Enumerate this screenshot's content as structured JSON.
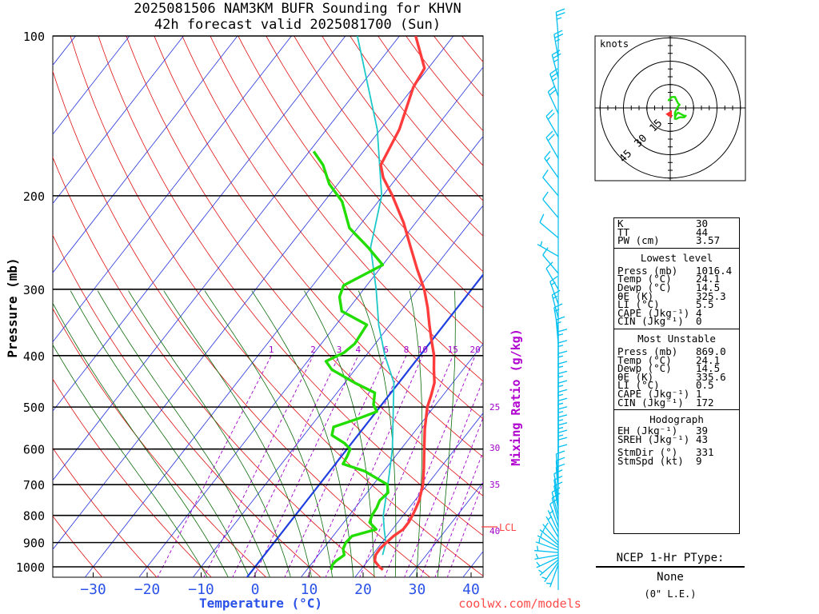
{
  "header": {
    "title_line1": "2025081506 NAM3KM BUFR Sounding for KHVN",
    "title_line2": "42h forecast valid 2025081700 (Sun)"
  },
  "axes": {
    "ylabel": "Pressure (mb)",
    "xlabel": "Temperature (°C)",
    "mixing_ratio_label": "Mixing Ratio (g/kg)",
    "lcl_label": "LCL",
    "credit": "coolwx.com/models"
  },
  "chart_data": {
    "type": "line",
    "title": "2025081506 NAM3KM BUFR Sounding for KHVN",
    "subtitle": "42h forecast valid 2025081700 (Sun)",
    "xlabel": "Temperature (°C)",
    "ylabel": "Pressure (mb)",
    "y_scale": "log",
    "pressure_levels": [
      100,
      200,
      300,
      400,
      500,
      600,
      700,
      800,
      900,
      1000
    ],
    "pressure_tick_labels": [
      "100",
      "200",
      "300",
      "400",
      "500",
      "600",
      "700",
      "800",
      "900",
      "1000"
    ],
    "temperature_ticks": [
      -30,
      -20,
      -10,
      0,
      10,
      20,
      30,
      40
    ],
    "temperature_tick_labels": [
      "−30",
      "−20",
      "−10",
      "0",
      "10",
      "20",
      "30",
      "40"
    ],
    "xlim_at_1000mb": [
      -40.7,
      43
    ],
    "mixing_ratio_lines": [
      1,
      2,
      3,
      4,
      6,
      8,
      10,
      15,
      20,
      25,
      30,
      35,
      40
    ],
    "mixing_ratio_labels_top": [
      "1",
      "2",
      "3",
      "4",
      "6",
      "8",
      "10",
      "15",
      "20"
    ],
    "mixing_ratio_labels_right": [
      "25",
      "30",
      "35",
      "40"
    ],
    "colors": {
      "temperature": "#ff3b3b",
      "dewpoint": "#22dd00",
      "parcel": "#1ec8c8",
      "freezing_line": "#1f3fe0",
      "isotherm": "#2433dd",
      "dry_adiabat": "#e01010",
      "moist_adiabat": "#0a6a0a",
      "mixing_ratio": "#a000c8",
      "wind_barb": "#00bff0",
      "hodograph": "#22dd00",
      "lcl": "#ff4444"
    },
    "series": [
      {
        "name": "Temperature",
        "points": [
          [
            1013,
            24.1
          ],
          [
            1000,
            23.0
          ],
          [
            975,
            21.3
          ],
          [
            950,
            20.6
          ],
          [
            925,
            20.5
          ],
          [
            900,
            20.8
          ],
          [
            875,
            21.2
          ],
          [
            850,
            22.0
          ],
          [
            825,
            22.0
          ],
          [
            800,
            21.7
          ],
          [
            775,
            21.3
          ],
          [
            750,
            20.8
          ],
          [
            700,
            19.2
          ],
          [
            650,
            16.9
          ],
          [
            600,
            14.3
          ],
          [
            550,
            11.5
          ],
          [
            500,
            8.8
          ],
          [
            475,
            7.8
          ],
          [
            450,
            6.6
          ],
          [
            425,
            4.6
          ],
          [
            400,
            2.6
          ],
          [
            375,
            0.0
          ],
          [
            350,
            -2.7
          ],
          [
            325,
            -5.5
          ],
          [
            300,
            -8.8
          ],
          [
            275,
            -13.0
          ],
          [
            250,
            -17.4
          ],
          [
            225,
            -22.2
          ],
          [
            200,
            -28.2
          ],
          [
            185,
            -32.5
          ],
          [
            175,
            -34.8
          ],
          [
            150,
            -36.5
          ],
          [
            125,
            -40.0
          ],
          [
            115,
            -40.7
          ],
          [
            100,
            -47.0
          ]
        ]
      },
      {
        "name": "Dewpoint",
        "points": [
          [
            1013,
            14.5
          ],
          [
            990,
            14.0
          ],
          [
            975,
            14.1
          ],
          [
            950,
            14.8
          ],
          [
            925,
            13.7
          ],
          [
            900,
            13.3
          ],
          [
            875,
            13.5
          ],
          [
            850,
            17.0
          ],
          [
            825,
            14.8
          ],
          [
            800,
            14.2
          ],
          [
            775,
            14.0
          ],
          [
            750,
            13.5
          ],
          [
            725,
            13.9
          ],
          [
            700,
            12.6
          ],
          [
            660,
            6.4
          ],
          [
            640,
            1.4
          ],
          [
            620,
            1.1
          ],
          [
            600,
            0.6
          ],
          [
            585,
            -1.3
          ],
          [
            565,
            -4.8
          ],
          [
            545,
            -5.7
          ],
          [
            525,
            -2.2
          ],
          [
            510,
            0.1
          ],
          [
            495,
            -1.5
          ],
          [
            470,
            -3.0
          ],
          [
            450,
            -8.2
          ],
          [
            425,
            -14.3
          ],
          [
            410,
            -16.6
          ],
          [
            395,
            -14.5
          ],
          [
            380,
            -13.8
          ],
          [
            350,
            -14.3
          ],
          [
            330,
            -20.9
          ],
          [
            310,
            -23.4
          ],
          [
            295,
            -24.3
          ],
          [
            270,
            -20.0
          ],
          [
            250,
            -25.3
          ],
          [
            230,
            -31.5
          ],
          [
            205,
            -36.7
          ],
          [
            190,
            -41.6
          ],
          [
            175,
            -45.5
          ],
          [
            165,
            -49.2
          ]
        ]
      },
      {
        "name": "Parcel",
        "points": [
          [
            950,
            21.9
          ],
          [
            900,
            20.7
          ],
          [
            850,
            18.5
          ],
          [
            800,
            16.3
          ],
          [
            700,
            12.7
          ],
          [
            600,
            8.4
          ],
          [
            500,
            2.5
          ],
          [
            450,
            -0.9
          ],
          [
            400,
            -6.5
          ],
          [
            350,
            -12.1
          ],
          [
            300,
            -17.7
          ],
          [
            250,
            -24.8
          ],
          [
            200,
            -30.2
          ],
          [
            150,
            -40.6
          ],
          [
            100,
            -57.8
          ]
        ]
      }
    ],
    "wind_barbs": [
      {
        "p": 990,
        "spd": 3,
        "dir": 200
      },
      {
        "p": 980,
        "spd": 3,
        "dir": 215
      },
      {
        "p": 970,
        "spd": 4,
        "dir": 230
      },
      {
        "p": 960,
        "spd": 4,
        "dir": 245
      },
      {
        "p": 950,
        "spd": 5,
        "dir": 260
      },
      {
        "p": 940,
        "spd": 5,
        "dir": 275
      },
      {
        "p": 930,
        "spd": 5,
        "dir": 290
      },
      {
        "p": 920,
        "spd": 5,
        "dir": 300
      },
      {
        "p": 910,
        "spd": 5,
        "dir": 310
      },
      {
        "p": 900,
        "spd": 5,
        "dir": 320
      },
      {
        "p": 880,
        "spd": 5,
        "dir": 330
      },
      {
        "p": 860,
        "spd": 5,
        "dir": 335
      },
      {
        "p": 840,
        "spd": 8,
        "dir": 340
      },
      {
        "p": 820,
        "spd": 8,
        "dir": 345
      },
      {
        "p": 800,
        "spd": 10,
        "dir": 345
      },
      {
        "p": 780,
        "spd": 10,
        "dir": 350
      },
      {
        "p": 760,
        "spd": 10,
        "dir": 350
      },
      {
        "p": 740,
        "spd": 10,
        "dir": 350
      },
      {
        "p": 720,
        "spd": 10,
        "dir": 355
      },
      {
        "p": 700,
        "spd": 10,
        "dir": 355
      },
      {
        "p": 680,
        "spd": 10,
        "dir": 355
      },
      {
        "p": 660,
        "spd": 10,
        "dir": 0
      },
      {
        "p": 640,
        "spd": 10,
        "dir": 0
      },
      {
        "p": 620,
        "spd": 15,
        "dir": 0
      },
      {
        "p": 600,
        "spd": 15,
        "dir": 0
      },
      {
        "p": 580,
        "spd": 15,
        "dir": 0
      },
      {
        "p": 560,
        "spd": 15,
        "dir": 0
      },
      {
        "p": 540,
        "spd": 15,
        "dir": 0
      },
      {
        "p": 520,
        "spd": 15,
        "dir": 0
      },
      {
        "p": 500,
        "spd": 15,
        "dir": 0
      },
      {
        "p": 480,
        "spd": 15,
        "dir": 0
      },
      {
        "p": 460,
        "spd": 15,
        "dir": 0
      },
      {
        "p": 440,
        "spd": 15,
        "dir": 0
      },
      {
        "p": 420,
        "spd": 15,
        "dir": 0
      },
      {
        "p": 400,
        "spd": 15,
        "dir": 0
      },
      {
        "p": 380,
        "spd": 15,
        "dir": 355
      },
      {
        "p": 360,
        "spd": 15,
        "dir": 350
      },
      {
        "p": 340,
        "spd": 15,
        "dir": 345
      },
      {
        "p": 320,
        "spd": 15,
        "dir": 340
      },
      {
        "p": 300,
        "spd": 10,
        "dir": 330
      },
      {
        "p": 280,
        "spd": 10,
        "dir": 320
      },
      {
        "p": 260,
        "spd": 5,
        "dir": 300
      },
      {
        "p": 240,
        "spd": 10,
        "dir": 310
      },
      {
        "p": 220,
        "spd": 10,
        "dir": 320
      },
      {
        "p": 200,
        "spd": 10,
        "dir": 320
      },
      {
        "p": 185,
        "spd": 15,
        "dir": 325
      },
      {
        "p": 170,
        "spd": 20,
        "dir": 330
      },
      {
        "p": 155,
        "spd": 20,
        "dir": 330
      },
      {
        "p": 140,
        "spd": 20,
        "dir": 335
      },
      {
        "p": 130,
        "spd": 25,
        "dir": 340
      },
      {
        "p": 120,
        "spd": 25,
        "dir": 345
      },
      {
        "p": 110,
        "spd": 25,
        "dir": 350
      },
      {
        "p": 100,
        "spd": 25,
        "dir": 355
      }
    ],
    "hodograph": {
      "unit_label": "knots",
      "ring_labels": [
        "15",
        "30",
        "45"
      ],
      "rings_kt": [
        15,
        30,
        45
      ],
      "trace_uv_kt": [
        [
          3,
          -6
        ],
        [
          4,
          -4
        ],
        [
          5,
          -3
        ],
        [
          7,
          -4
        ],
        [
          9,
          -5
        ],
        [
          10,
          -5
        ],
        [
          9,
          -6
        ],
        [
          6,
          -6
        ],
        [
          4,
          -7
        ],
        [
          3,
          -7
        ],
        [
          3,
          -3
        ],
        [
          4,
          -1
        ],
        [
          5,
          1
        ],
        [
          6,
          2
        ],
        [
          5,
          3
        ],
        [
          4,
          5
        ],
        [
          3,
          7
        ],
        [
          1,
          7
        ],
        [
          0,
          6
        ],
        [
          -1,
          5
        ],
        [
          0,
          5
        ]
      ],
      "storm_motion_uv_kt": [
        -1,
        -4
      ]
    }
  },
  "indices": {
    "top": [
      {
        "k": "K",
        "v": "30"
      },
      {
        "k": "TT",
        "v": "44"
      },
      {
        "k": "PW (cm)",
        "v": "3.57"
      }
    ],
    "lowest_title": "Lowest level",
    "lowest": [
      {
        "k": "Press (mb)",
        "v": "1016.4"
      },
      {
        "k": "Temp (°C)",
        "v": "24.1"
      },
      {
        "k": "Dewp (°C)",
        "v": "14.5"
      },
      {
        "k": "θE (K)",
        "v": "325.3"
      },
      {
        "k": "LI (°C)",
        "v": "5.5"
      },
      {
        "k": "CAPE (Jkg⁻¹)",
        "v": "4"
      },
      {
        "k": "CIN (Jkg⁻¹)",
        "v": "0"
      }
    ],
    "mu_title": "Most Unstable",
    "mu": [
      {
        "k": "Press (mb)",
        "v": "869.0"
      },
      {
        "k": "Temp (°C)",
        "v": "24.1"
      },
      {
        "k": "Dewp (°C)",
        "v": "14.5"
      },
      {
        "k": "θE (K)",
        "v": "335.6"
      },
      {
        "k": "LI (°C)",
        "v": "0.5"
      },
      {
        "k": "CAPE (Jkg⁻¹)",
        "v": "1"
      },
      {
        "k": "CIN (Jkg⁻¹)",
        "v": "172"
      }
    ],
    "hodo_title": "Hodograph",
    "hodo": [
      {
        "k": "EH (Jkg⁻¹)",
        "v": "39"
      },
      {
        "k": "SREH (Jkg⁻¹)",
        "v": "43"
      }
    ],
    "storm": [
      {
        "k": "StmDir (°)",
        "v": "331"
      },
      {
        "k": "StmSpd (kt)",
        "v": "9"
      }
    ]
  },
  "ptype": {
    "header": "NCEP 1-Hr PType:",
    "value": "None",
    "sub": "(0\" L.E.)"
  }
}
